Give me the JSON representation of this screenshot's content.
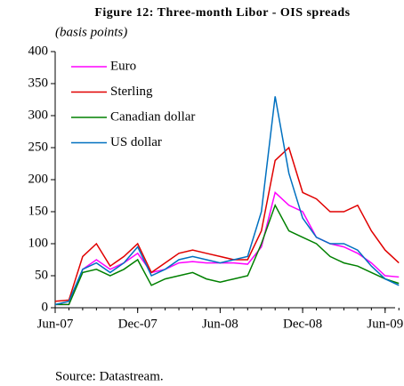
{
  "chart_data": {
    "type": "line",
    "title": "Figure 12: Three-month Libor - OIS spreads",
    "subtitle": "(basis points)",
    "source": "Source: Datastream.",
    "x": [
      "2007-06",
      "2007-07",
      "2007-08",
      "2007-09",
      "2007-10",
      "2007-11",
      "2007-12",
      "2008-01",
      "2008-02",
      "2008-03",
      "2008-04",
      "2008-05",
      "2008-06",
      "2008-07",
      "2008-08",
      "2008-09",
      "2008-10",
      "2008-11",
      "2008-12",
      "2009-01",
      "2009-02",
      "2009-03",
      "2009-04",
      "2009-05",
      "2009-06",
      "2009-07"
    ],
    "xticks": [
      {
        "value": "2007-06",
        "label": "Jun-07"
      },
      {
        "value": "2007-12",
        "label": "Dec-07"
      },
      {
        "value": "2008-06",
        "label": "Jun-08"
      },
      {
        "value": "2008-12",
        "label": "Dec-08"
      },
      {
        "value": "2009-06",
        "label": "Jun-09"
      }
    ],
    "ylim": [
      0,
      400
    ],
    "yticks": [
      0,
      50,
      100,
      150,
      200,
      250,
      300,
      350,
      400
    ],
    "legend": "upper left",
    "series": [
      {
        "name": "Euro",
        "color": "#ff00ff",
        "values": [
          5,
          5,
          60,
          75,
          60,
          70,
          85,
          55,
          60,
          70,
          72,
          70,
          70,
          70,
          68,
          95,
          180,
          160,
          150,
          110,
          100,
          95,
          85,
          70,
          50,
          48
        ]
      },
      {
        "name": "Sterling",
        "color": "#e00000",
        "values": [
          10,
          12,
          80,
          100,
          65,
          80,
          100,
          55,
          70,
          85,
          90,
          85,
          80,
          75,
          75,
          120,
          230,
          250,
          180,
          170,
          150,
          150,
          160,
          120,
          90,
          70
        ]
      },
      {
        "name": "Canadian dollar",
        "color": "#008000",
        "values": [
          5,
          5,
          55,
          60,
          50,
          60,
          75,
          35,
          45,
          50,
          55,
          45,
          40,
          45,
          50,
          100,
          160,
          120,
          110,
          100,
          80,
          70,
          65,
          55,
          45,
          38
        ]
      },
      {
        "name": "US dollar",
        "color": "#0070c0",
        "values": [
          5,
          10,
          60,
          70,
          55,
          70,
          95,
          50,
          60,
          75,
          80,
          75,
          70,
          75,
          80,
          150,
          330,
          210,
          140,
          110,
          100,
          100,
          90,
          65,
          45,
          35
        ]
      }
    ]
  }
}
